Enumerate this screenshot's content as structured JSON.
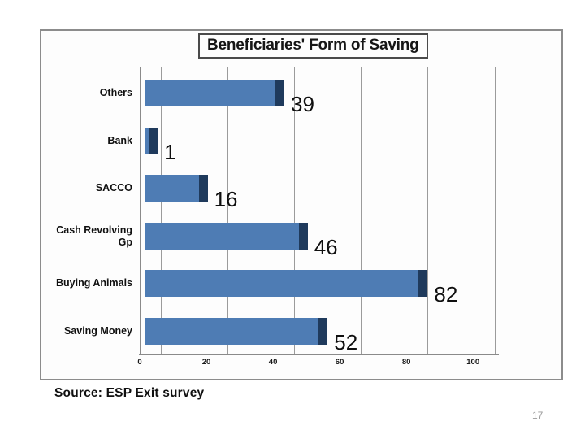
{
  "slide": {
    "source_note": "Source: ESP Exit survey",
    "page_number": "17"
  },
  "chart_data": {
    "type": "bar",
    "orientation": "horizontal",
    "title": "Beneficiaries' Form of Saving",
    "categories": [
      "Others",
      "Bank",
      "SACCO",
      "Cash Revolving Gp",
      "Buying Animals",
      "Saving Money"
    ],
    "values": [
      39,
      1,
      16,
      46,
      82,
      52
    ],
    "data_labels": [
      "39",
      "1",
      "16",
      "46",
      "82",
      "52"
    ],
    "xlabel": "",
    "ylabel": "",
    "xlim": [
      0,
      107.5
    ],
    "xticks": [
      0,
      20,
      40,
      60,
      80,
      100
    ],
    "gridlines_at": [
      6.4,
      26.4,
      46.4,
      66.4,
      86.4,
      106.4
    ],
    "grid": true,
    "legend": false,
    "colors": {
      "bar": "#4e7cb4",
      "bar_cap": "#1f3a5c",
      "gridline": "#9b9b9b",
      "axis": "#8a8a8a"
    }
  }
}
